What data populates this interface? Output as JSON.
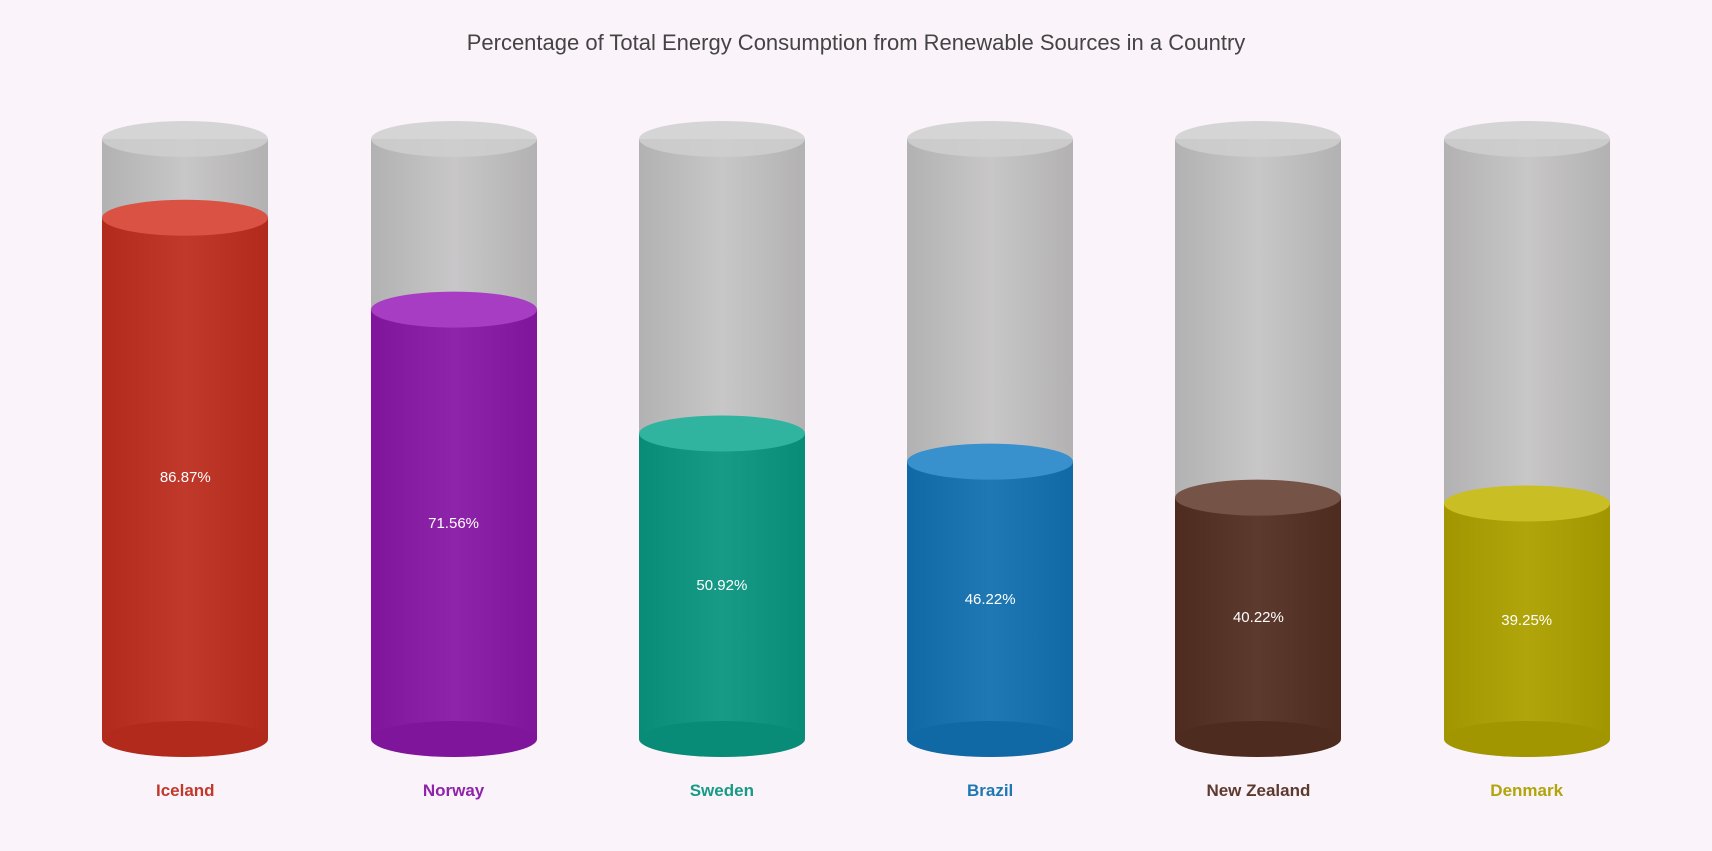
{
  "chart": {
    "type": "cylinder-bar",
    "title": "Percentage of Total Energy Consumption from Renewable Sources in a Country",
    "title_fontsize": 22,
    "title_color": "#444444",
    "background_color": "#fbf3fa",
    "ylim": [
      0,
      100
    ],
    "cylinder_width": 166,
    "cylinder_max_height": 600,
    "ellipse_ry": 18,
    "empty_fill": "#bfbfbf",
    "empty_fill_top": "#cfcfcf",
    "empty_opacity": 0.85,
    "value_label_fontsize": 15,
    "value_label_color": "#ffffff",
    "category_label_fontsize": 17,
    "category_label_fontweight": 600,
    "series": [
      {
        "category": "Iceland",
        "value": 86.87,
        "color": "#c0392b",
        "label_color": "#c0392b"
      },
      {
        "category": "Norway",
        "value": 71.56,
        "color": "#8e24aa",
        "label_color": "#8e24aa"
      },
      {
        "category": "Sweden",
        "value": 50.92,
        "color": "#179b87",
        "label_color": "#179b87"
      },
      {
        "category": "Brazil",
        "value": 46.22,
        "color": "#1f78b4",
        "label_color": "#1f78b4"
      },
      {
        "category": "New Zealand",
        "value": 40.22,
        "color": "#5d3a2e",
        "label_color": "#5d3a2e"
      },
      {
        "category": "Denmark",
        "value": 39.25,
        "color": "#b0a50a",
        "label_color": "#b0a50a"
      }
    ]
  }
}
